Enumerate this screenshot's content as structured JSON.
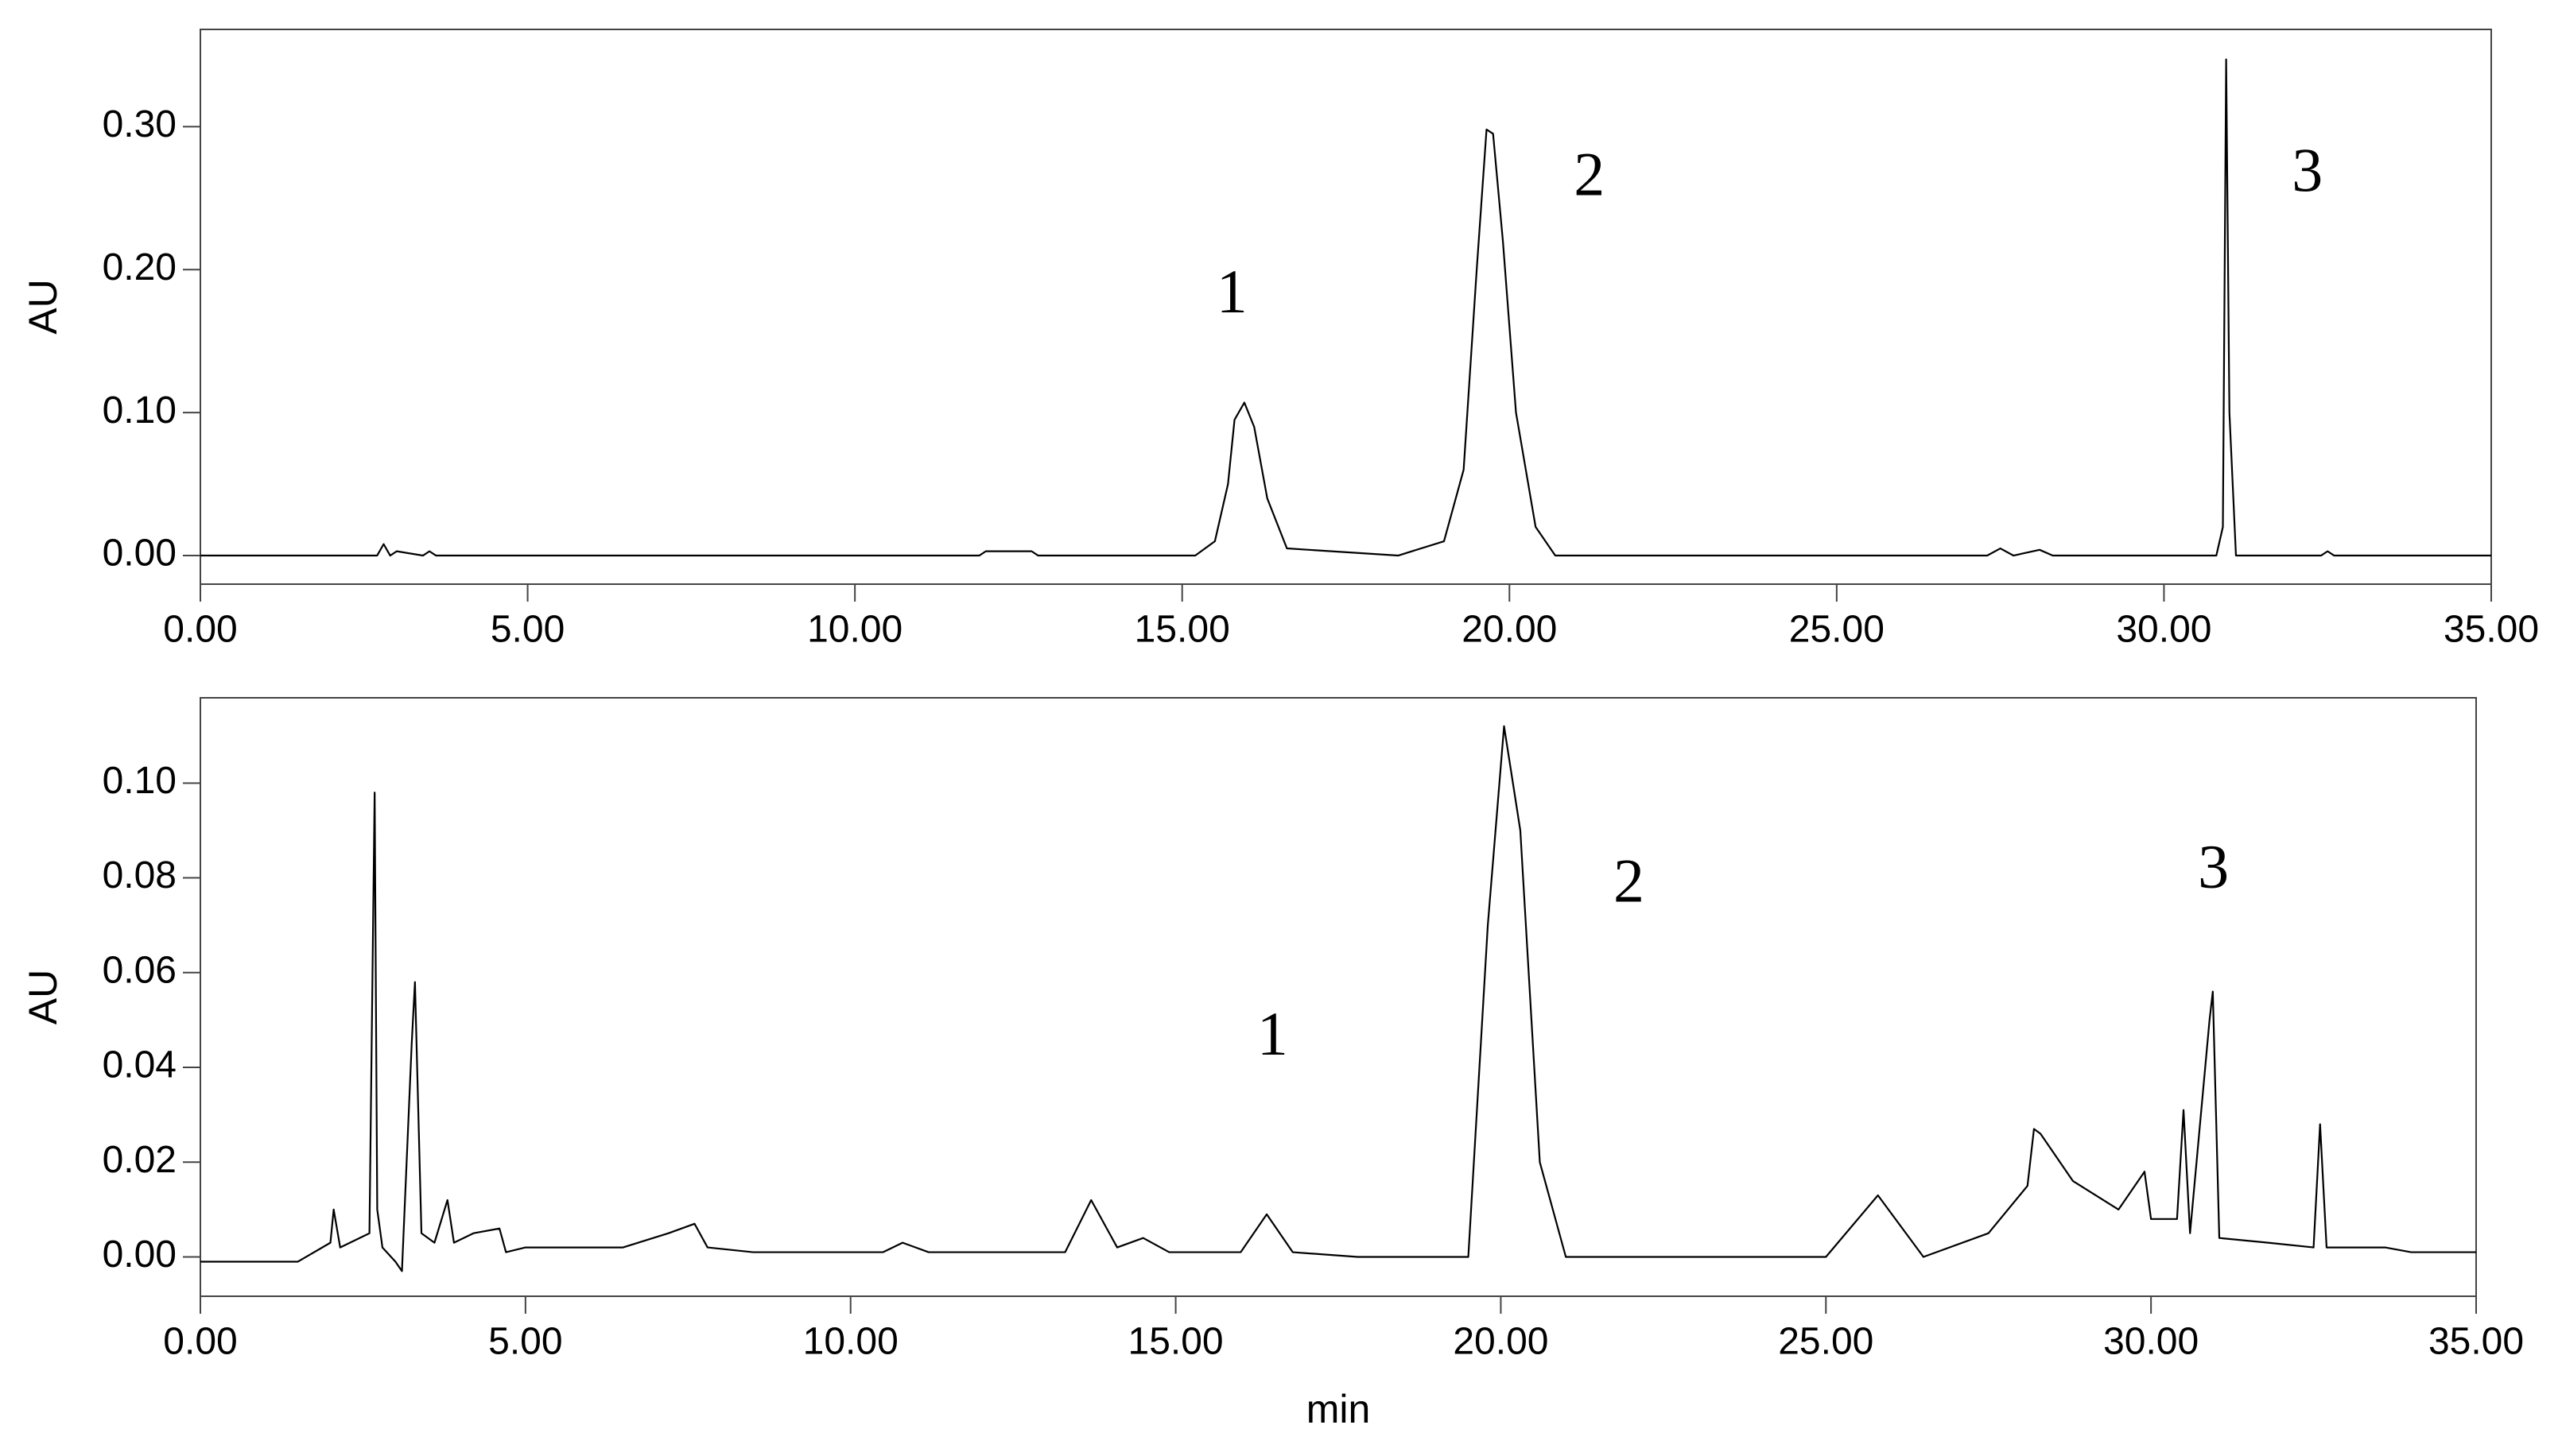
{
  "chart_data": [
    {
      "type": "line",
      "x": [
        0,
        2.7,
        2.8,
        2.9,
        3.0,
        3.4,
        3.5,
        3.6,
        11.9,
        12.0,
        12.7,
        12.8,
        15.2,
        15.5,
        15.7,
        15.8,
        15.95,
        16.1,
        16.3,
        16.6,
        18.3,
        19.0,
        19.3,
        19.5,
        19.65,
        19.75,
        19.9,
        20.1,
        20.4,
        20.7,
        27.3,
        27.5,
        27.7,
        28.1,
        28.3,
        30.8,
        30.9,
        30.95,
        31.0,
        31.1,
        32.4,
        32.5,
        32.6,
        35
      ],
      "values": [
        0,
        0,
        0.008,
        0,
        0.003,
        0,
        0.003,
        0,
        0,
        0.003,
        0.003,
        0,
        0,
        0.01,
        0.05,
        0.095,
        0.107,
        0.09,
        0.04,
        0.005,
        0,
        0.01,
        0.06,
        0.2,
        0.298,
        0.295,
        0.22,
        0.1,
        0.02,
        0,
        0,
        0.005,
        0,
        0.004,
        0,
        0,
        0.02,
        0.347,
        0.1,
        0,
        0,
        0.003,
        0,
        0
      ],
      "color": "#000000",
      "xlim": [
        0,
        35
      ],
      "ylim": [
        -0.02,
        0.368
      ],
      "xticks": [
        {
          "value": 0,
          "label": "0.00"
        },
        {
          "value": 5,
          "label": "5.00"
        },
        {
          "value": 10,
          "label": "10.00"
        },
        {
          "value": 15,
          "label": "15.00"
        },
        {
          "value": 20,
          "label": "20.00"
        },
        {
          "value": 25,
          "label": "25.00"
        },
        {
          "value": 30,
          "label": "30.00"
        },
        {
          "value": 35,
          "label": "35.00"
        }
      ],
      "yticks": [
        {
          "value": 0,
          "label": "0.00"
        },
        {
          "value": 0.1,
          "label": "0.10"
        },
        {
          "value": 0.2,
          "label": "0.20"
        },
        {
          "value": 0.3,
          "label": "0.30"
        }
      ],
      "ylabel": "AU",
      "annotations": [
        {
          "text": "1",
          "x": 15.76,
          "y": 0.18
        },
        {
          "text": "2",
          "x": 21.22,
          "y": 0.262
        },
        {
          "text": "3",
          "x": 32.19,
          "y": 0.265
        }
      ]
    },
    {
      "type": "line",
      "x": [
        0,
        1.0,
        1.5,
        2.0,
        2.05,
        2.15,
        2.6,
        2.68,
        2.72,
        2.8,
        3.0,
        3.1,
        3.25,
        3.3,
        3.4,
        3.6,
        3.8,
        3.9,
        4.2,
        4.6,
        4.7,
        5.0,
        6.5,
        7.2,
        7.6,
        7.8,
        8.5,
        10.5,
        10.8,
        11.2,
        13.3,
        13.7,
        14.1,
        14.5,
        14.9,
        16.0,
        16.4,
        16.8,
        17.8,
        19.5,
        19.8,
        20.05,
        20.3,
        20.6,
        21.0,
        23.5,
        25.0,
        25.8,
        26.5,
        27.5,
        28.1,
        28.2,
        28.3,
        28.8,
        29.5,
        29.9,
        30.0,
        30.4,
        30.5,
        30.6,
        30.9,
        30.95,
        31.05,
        31.8,
        32.5,
        32.6,
        32.7,
        33.6,
        34.0,
        35
      ],
      "values": [
        -0.001,
        -0.001,
        -0.001,
        0.003,
        0.01,
        0.002,
        0.005,
        0.098,
        0.01,
        0.002,
        -0.001,
        -0.003,
        0.045,
        0.058,
        0.005,
        0.003,
        0.012,
        0.003,
        0.005,
        0.006,
        0.001,
        0.002,
        0.002,
        0.005,
        0.007,
        0.002,
        0.001,
        0.001,
        0.003,
        0.001,
        0.001,
        0.012,
        0.002,
        0.004,
        0.001,
        0.001,
        0.009,
        0.001,
        0,
        0,
        0.07,
        0.112,
        0.09,
        0.02,
        0,
        0,
        0,
        0.013,
        0,
        0.005,
        0.015,
        0.027,
        0.026,
        0.016,
        0.01,
        0.018,
        0.008,
        0.008,
        0.031,
        0.005,
        0.05,
        0.056,
        0.004,
        0.003,
        0.002,
        0.028,
        0.002,
        0.002,
        0.001,
        0.001
      ],
      "color": "#000000",
      "xlim": [
        0,
        35
      ],
      "ylim": [
        -0.0083,
        0.118
      ],
      "xticks": [
        {
          "value": 0,
          "label": "0.00"
        },
        {
          "value": 5,
          "label": "5.00"
        },
        {
          "value": 10,
          "label": "10.00"
        },
        {
          "value": 15,
          "label": "15.00"
        },
        {
          "value": 20,
          "label": "20.00"
        },
        {
          "value": 25,
          "label": "25.00"
        },
        {
          "value": 30,
          "label": "30.00"
        },
        {
          "value": 35,
          "label": "35.00"
        }
      ],
      "yticks": [
        {
          "value": 0,
          "label": "0.00"
        },
        {
          "value": 0.02,
          "label": "0.02"
        },
        {
          "value": 0.04,
          "label": "0.04"
        },
        {
          "value": 0.06,
          "label": "0.06"
        },
        {
          "value": 0.08,
          "label": "0.08"
        },
        {
          "value": 0.1,
          "label": "0.10"
        }
      ],
      "ylabel": "AU",
      "xlabel": "min",
      "annotations": [
        {
          "text": "1",
          "x": 16.49,
          "y": 0.0457
        },
        {
          "text": "2",
          "x": 21.97,
          "y": 0.078
        },
        {
          "text": "3",
          "x": 30.96,
          "y": 0.081
        }
      ]
    }
  ]
}
